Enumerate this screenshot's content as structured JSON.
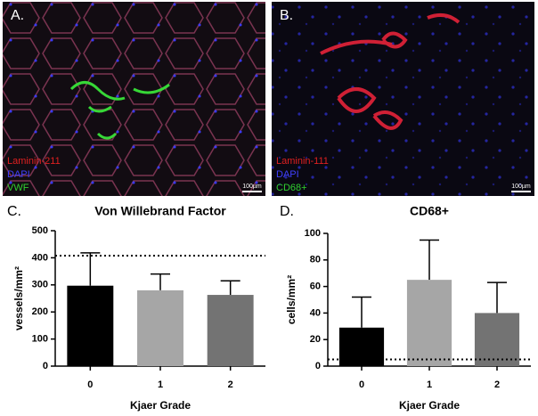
{
  "images": [
    {
      "label": "A.",
      "legend": [
        "Laminin-211",
        "DAPI",
        "VWF"
      ],
      "scale": "100µm"
    },
    {
      "label": "B.",
      "legend": [
        "Laminin-111",
        "DAPI",
        "CD68+"
      ],
      "scale": "100µm"
    }
  ],
  "chart_data": [
    {
      "type": "bar",
      "panel": "C.",
      "title": "Von Willebrand Factor",
      "x_label": "Kjaer Grade",
      "y_label": "vessels/mm²",
      "categories": [
        "0",
        "1",
        "2"
      ],
      "values": [
        297,
        280,
        263
      ],
      "errors": [
        121,
        60,
        52
      ],
      "colors": [
        "#000000",
        "#a6a6a6",
        "#737373"
      ],
      "reference_line": 408,
      "ylim": [
        0,
        500
      ],
      "yticks": [
        0,
        100,
        200,
        300,
        400,
        500
      ]
    },
    {
      "type": "bar",
      "panel": "D.",
      "title": "CD68+",
      "x_label": "Kjaer Grade",
      "y_label": "cells/mm²",
      "categories": [
        "0",
        "1",
        "2"
      ],
      "values": [
        29,
        65,
        40
      ],
      "errors": [
        23,
        30,
        23
      ],
      "colors": [
        "#000000",
        "#a6a6a6",
        "#737373"
      ],
      "reference_line": 5,
      "ylim": [
        0,
        100
      ],
      "yticks": [
        0,
        20,
        40,
        60,
        80,
        100
      ]
    }
  ]
}
